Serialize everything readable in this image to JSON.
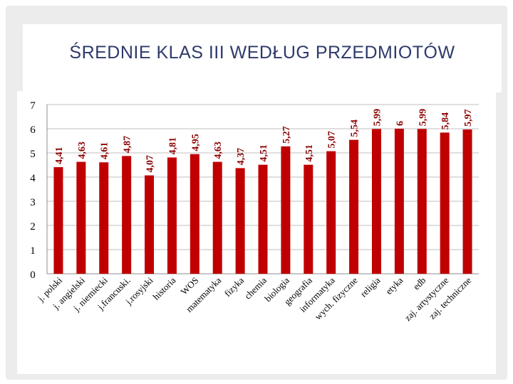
{
  "title": "ŚREDNIE KLAS III WEDŁUG PRZEDMIOTÓW",
  "chart_data": {
    "type": "bar",
    "categories": [
      "j. polski",
      "j. angielski",
      "j. niemiecki",
      "j.francuski.",
      "j.rosyjski",
      "historia",
      "WOS",
      "matematyka",
      "fizyka",
      "chemia",
      "biologia",
      "geografia",
      "informatyka",
      "wych. fizyczne",
      "religia",
      "etyka",
      "edb",
      "zaj. artystyczne",
      "zaj. techniczne"
    ],
    "values": [
      4.41,
      4.63,
      4.61,
      4.87,
      4.07,
      4.81,
      4.95,
      4.63,
      4.37,
      4.51,
      5.27,
      4.51,
      5.07,
      5.54,
      5.99,
      6,
      5.99,
      5.84,
      5.97
    ],
    "labels": [
      "4,41",
      "4,63",
      "4,61",
      "4,87",
      "4,07",
      "4,81",
      "4,95",
      "4,63",
      "4,37",
      "4,51",
      "5,27",
      "4,51",
      "5,07",
      "5,54",
      "5,99",
      "6",
      "5,99",
      "5,84",
      "5,97"
    ],
    "yticks": [
      "0",
      "1",
      "2",
      "3",
      "4",
      "5",
      "6",
      "7"
    ],
    "ylim": [
      0,
      7
    ],
    "grid": true,
    "bar_color": "#c00000",
    "grid_color": "#bfbfbf"
  }
}
